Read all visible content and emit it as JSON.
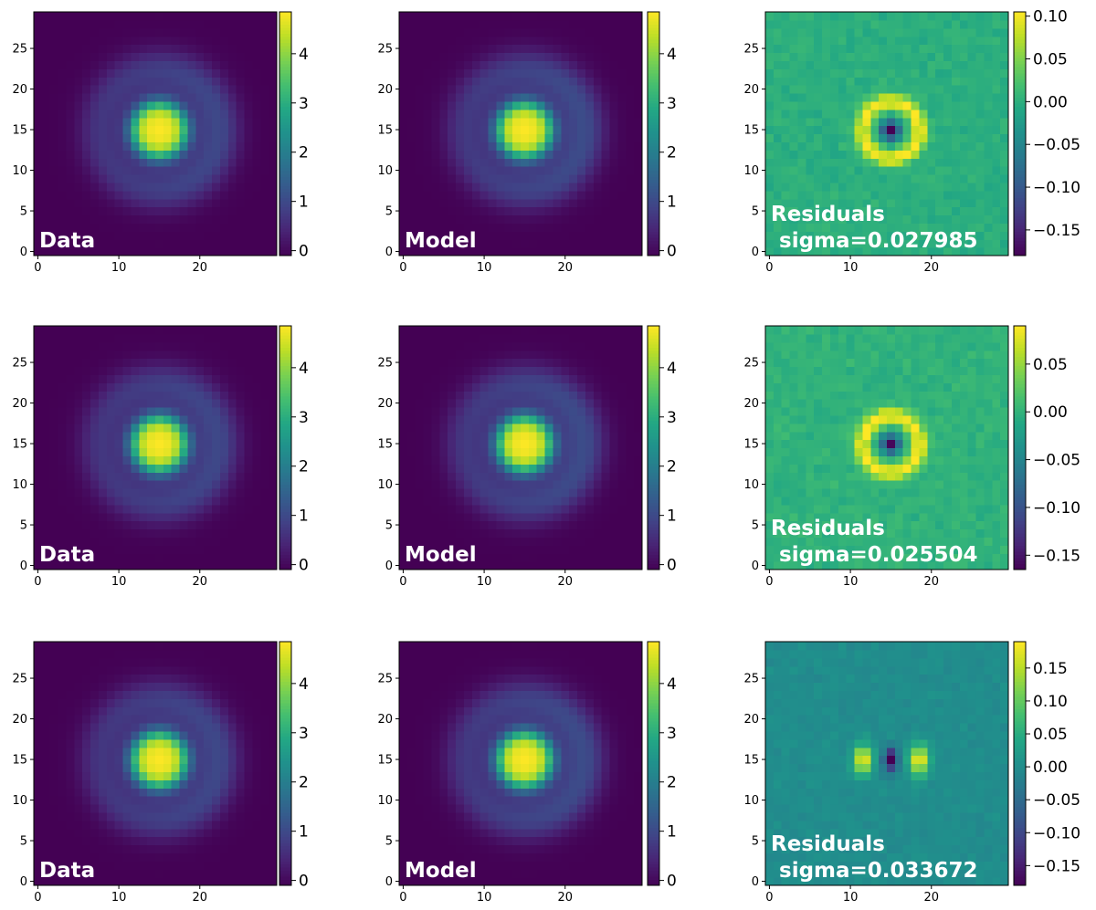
{
  "chart_data": [
    {
      "type": "heatmap",
      "label": "Data",
      "sigma_text": "",
      "grid_size": 30,
      "x_ticks": [
        0,
        10,
        20
      ],
      "y_ticks": [
        0,
        5,
        10,
        15,
        20,
        25
      ],
      "colorbar": {
        "min": -0.1,
        "max": 4.85,
        "ticks": [
          0,
          1,
          2,
          3,
          4
        ],
        "tick_labels": [
          "0",
          "1",
          "2",
          "3",
          "4"
        ]
      },
      "image": {
        "center": [
          15,
          15
        ],
        "core_radius": 3.3,
        "edge_width": 0.6,
        "peak": 4.85,
        "halo_amp": 0.75,
        "halo_radius": 7.5,
        "halo_width": 2.5,
        "halo_skew": 0.2,
        "bg": -0.1,
        "asym": 0,
        "noise": 0
      }
    },
    {
      "type": "heatmap",
      "label": "Model",
      "sigma_text": "",
      "grid_size": 30,
      "x_ticks": [
        0,
        10,
        20
      ],
      "y_ticks": [
        0,
        5,
        10,
        15,
        20,
        25
      ],
      "colorbar": {
        "min": -0.1,
        "max": 4.85,
        "ticks": [
          0,
          1,
          2,
          3,
          4
        ],
        "tick_labels": [
          "0",
          "1",
          "2",
          "3",
          "4"
        ]
      },
      "image": {
        "center": [
          15,
          15
        ],
        "core_radius": 3.3,
        "edge_width": 0.6,
        "peak": 4.85,
        "halo_amp": 0.8,
        "halo_radius": 7.5,
        "halo_width": 2.5,
        "halo_skew": 0.2,
        "bg": -0.1,
        "asym": 0,
        "noise": 0
      }
    },
    {
      "type": "heatmap",
      "label": "Residuals",
      "sigma_text": "sigma=0.027985",
      "grid_size": 30,
      "x_ticks": [
        0,
        10,
        20
      ],
      "y_ticks": [
        0,
        5,
        10,
        15,
        20,
        25
      ],
      "colorbar": {
        "min": -0.18,
        "max": 0.105,
        "ticks": [
          0.1,
          0.05,
          0.0,
          -0.05,
          -0.1,
          -0.15
        ],
        "tick_labels": [
          "0.10",
          "0.05",
          "0.00",
          "−0.05",
          "−0.10",
          "−0.15"
        ]
      },
      "image": {
        "kind": "residual_ring",
        "center": [
          15,
          15
        ],
        "bg": 0.0,
        "noise": 0.012,
        "ring_amp": 0.105,
        "ring_radius": 3.5,
        "ring_width": 1.0,
        "core_amp": -0.18,
        "core_width": 0.8,
        "asym": 0
      }
    },
    {
      "type": "heatmap",
      "label": "Data",
      "sigma_text": "",
      "grid_size": 30,
      "x_ticks": [
        0,
        10,
        20
      ],
      "y_ticks": [
        0,
        5,
        10,
        15,
        20,
        25
      ],
      "colorbar": {
        "min": -0.1,
        "max": 4.85,
        "ticks": [
          0,
          1,
          2,
          3,
          4
        ],
        "tick_labels": [
          "0",
          "1",
          "2",
          "3",
          "4"
        ]
      },
      "image": {
        "center": [
          15,
          15
        ],
        "core_radius": 3.3,
        "edge_width": 0.6,
        "peak": 4.85,
        "halo_amp": 0.75,
        "halo_radius": 7.5,
        "halo_width": 2.5,
        "halo_skew": 0.2,
        "bg": -0.1,
        "asym": 0,
        "noise": 0
      }
    },
    {
      "type": "heatmap",
      "label": "Model",
      "sigma_text": "",
      "grid_size": 30,
      "x_ticks": [
        0,
        10,
        20
      ],
      "y_ticks": [
        0,
        5,
        10,
        15,
        20,
        25
      ],
      "colorbar": {
        "min": -0.1,
        "max": 4.85,
        "ticks": [
          0,
          1,
          2,
          3,
          4
        ],
        "tick_labels": [
          "0",
          "1",
          "2",
          "3",
          "4"
        ]
      },
      "image": {
        "center": [
          15,
          15
        ],
        "core_radius": 3.3,
        "edge_width": 0.6,
        "peak": 4.85,
        "halo_amp": 0.8,
        "halo_radius": 7.5,
        "halo_width": 2.5,
        "halo_skew": 0.2,
        "bg": -0.1,
        "asym": 0,
        "noise": 0
      }
    },
    {
      "type": "heatmap",
      "label": "Residuals",
      "sigma_text": "sigma=0.025504",
      "grid_size": 30,
      "x_ticks": [
        0,
        10,
        20
      ],
      "y_ticks": [
        0,
        5,
        10,
        15,
        20,
        25
      ],
      "colorbar": {
        "min": -0.165,
        "max": 0.09,
        "ticks": [
          0.05,
          0.0,
          -0.05,
          -0.1,
          -0.15
        ],
        "tick_labels": [
          "0.05",
          "0.00",
          "−0.05",
          "−0.10",
          "−0.15"
        ]
      },
      "image": {
        "kind": "residual_ring",
        "center": [
          15,
          15
        ],
        "bg": 0.0,
        "noise": 0.011,
        "ring_amp": 0.09,
        "ring_radius": 3.5,
        "ring_width": 1.0,
        "core_amp": -0.165,
        "core_width": 0.8,
        "asym": 0
      }
    },
    {
      "type": "heatmap",
      "label": "Data",
      "sigma_text": "",
      "grid_size": 30,
      "x_ticks": [
        0,
        10,
        20
      ],
      "y_ticks": [
        0,
        5,
        10,
        15,
        20,
        25
      ],
      "colorbar": {
        "min": -0.1,
        "max": 4.85,
        "ticks": [
          0,
          1,
          2,
          3,
          4
        ],
        "tick_labels": [
          "0",
          "1",
          "2",
          "3",
          "4"
        ]
      },
      "image": {
        "center": [
          15,
          15
        ],
        "core_radius": 3.3,
        "edge_width": 0.6,
        "peak": 4.85,
        "halo_amp": 0.75,
        "halo_radius": 7.5,
        "halo_width": 2.5,
        "halo_skew": 0.2,
        "bg": -0.1,
        "asym": 0,
        "noise": 0
      }
    },
    {
      "type": "heatmap",
      "label": "Model",
      "sigma_text": "",
      "grid_size": 30,
      "x_ticks": [
        0,
        10,
        20
      ],
      "y_ticks": [
        0,
        5,
        10,
        15,
        20,
        25
      ],
      "colorbar": {
        "min": -0.1,
        "max": 4.85,
        "ticks": [
          0,
          1,
          2,
          3,
          4
        ],
        "tick_labels": [
          "0",
          "1",
          "2",
          "3",
          "4"
        ]
      },
      "image": {
        "center": [
          15,
          15
        ],
        "core_radius": 3.3,
        "edge_width": 0.6,
        "peak": 4.85,
        "halo_amp": 0.8,
        "halo_radius": 7.5,
        "halo_width": 2.5,
        "halo_skew": 0.2,
        "bg": -0.1,
        "asym": 0,
        "noise": 0
      }
    },
    {
      "type": "heatmap",
      "label": "Residuals",
      "sigma_text": "sigma=0.033672",
      "grid_size": 30,
      "x_ticks": [
        0,
        10,
        20
      ],
      "y_ticks": [
        0,
        5,
        10,
        15,
        20,
        25
      ],
      "colorbar": {
        "min": -0.18,
        "max": 0.19,
        "ticks": [
          0.15,
          0.1,
          0.05,
          0.0,
          -0.05,
          -0.1,
          -0.15
        ],
        "tick_labels": [
          "0.15",
          "0.10",
          "0.05",
          "0.00",
          "−0.05",
          "−0.10",
          "−0.15"
        ]
      },
      "image": {
        "kind": "residual_lobes",
        "center": [
          15,
          15
        ],
        "bg": 0.0,
        "noise": 0.012,
        "lobe_amp": 0.19,
        "lobe_offset": 3.5,
        "lobe_sigma_x": 0.8,
        "lobe_sigma_y": 1.3,
        "core_amp": -0.18,
        "core_sigma_x": 0.6,
        "core_sigma_y": 1.0
      }
    }
  ],
  "colormap": "viridis",
  "label_color": "#ffffff",
  "axis_color": "#000000"
}
